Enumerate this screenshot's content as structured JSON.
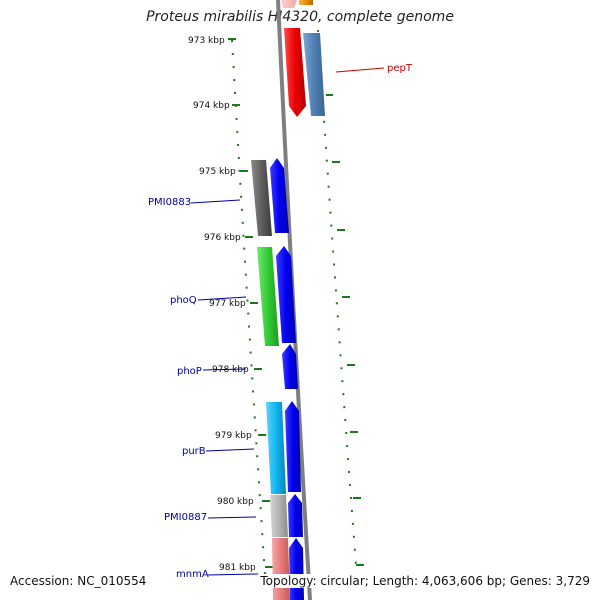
{
  "title": "Proteus mirabilis HI4320, complete genome",
  "footer": {
    "accession": "Accession: NC_010554",
    "summary": "Topology: circular; Length: 4,063,606 bp; Genes: 3,729"
  },
  "scale": {
    "ticks": [
      "973 kbp",
      "974 kbp",
      "975 kbp",
      "976 kbp",
      "977 kbp",
      "978 kbp",
      "979 kbp",
      "980 kbp",
      "981 kbp"
    ]
  },
  "genes": {
    "labels": [
      "pepT",
      "PMI0883",
      "phoQ",
      "phoP",
      "purB",
      "PMI0887",
      "mnmA"
    ]
  },
  "colors": {
    "backbone": "#7f7f7f",
    "scale_ticks": "#1a7a1a",
    "label_blue": "#0000a0",
    "label_red": "#cc0000",
    "feature_blue": "#0000ee",
    "feature_red": "#ee0000",
    "feature_steel": "#4f80b3",
    "feature_dark_grey": "#5f5f5f",
    "feature_green": "#33cc33",
    "feature_cyan": "#11b5ee",
    "feature_light_grey": "#b3b3b3",
    "feature_salmon": "#e77b7b",
    "feature_orange": "#f08a00"
  }
}
